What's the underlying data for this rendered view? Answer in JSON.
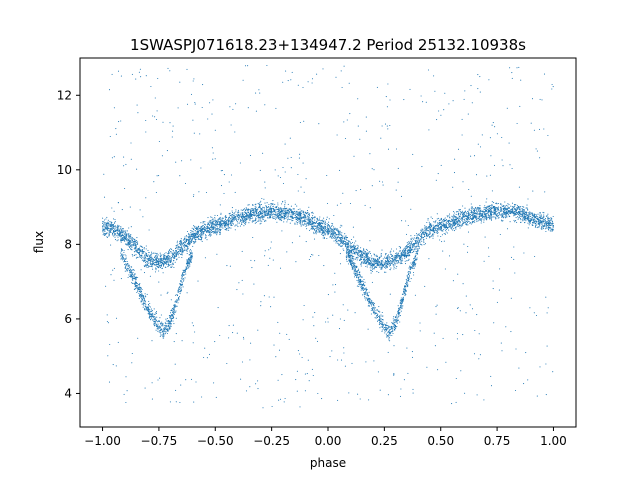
{
  "chart_data": {
    "type": "scatter",
    "title": "1SWASPJ071618.23+134947.2 Period 25132.10938s",
    "xlabel": "phase",
    "ylabel": "flux",
    "xlim": [
      -1.1,
      1.1
    ],
    "ylim": [
      3.1,
      13.0
    ],
    "xticks": [
      -1.0,
      -0.75,
      -0.5,
      -0.25,
      0.0,
      0.25,
      0.5,
      0.75,
      1.0
    ],
    "xtick_labels": [
      "−1.00",
      "−0.75",
      "−0.50",
      "−0.25",
      "0.00",
      "0.25",
      "0.50",
      "0.75",
      "1.00"
    ],
    "yticks": [
      4,
      6,
      8,
      10,
      12
    ],
    "ytick_labels": [
      "4",
      "6",
      "8",
      "10",
      "12"
    ],
    "grid": false,
    "marker_color": "#1f77b4",
    "series": [
      {
        "description_curve": "upper branch",
        "phase": [
          -1.0,
          -0.95,
          -0.9,
          -0.85,
          -0.8,
          -0.75,
          -0.7,
          -0.65,
          -0.6,
          -0.55,
          -0.5,
          -0.45,
          -0.4,
          -0.35,
          -0.3,
          -0.25,
          -0.2,
          -0.15,
          -0.1,
          -0.05,
          0.0,
          0.05,
          0.1,
          0.15,
          0.2,
          0.25,
          0.3,
          0.35,
          0.4,
          0.45,
          0.5,
          0.55,
          0.6,
          0.65,
          0.7,
          0.75,
          0.8,
          0.85,
          0.9,
          0.95,
          1.0
        ],
        "flux": [
          8.5,
          8.4,
          8.2,
          7.9,
          7.6,
          7.5,
          7.6,
          7.9,
          8.2,
          8.4,
          8.5,
          8.6,
          8.7,
          8.8,
          8.85,
          8.9,
          8.85,
          8.8,
          8.7,
          8.5,
          8.4,
          8.2,
          7.9,
          7.7,
          7.5,
          7.5,
          7.6,
          7.8,
          8.1,
          8.4,
          8.5,
          8.6,
          8.7,
          8.8,
          8.85,
          8.9,
          8.9,
          8.85,
          8.7,
          8.6,
          8.5
        ]
      },
      {
        "description_curve": "eclipse branch",
        "phase": [
          -0.92,
          -0.88,
          -0.84,
          -0.8,
          -0.76,
          -0.73,
          -0.7,
          -0.67,
          -0.64,
          -0.6,
          0.08,
          0.12,
          0.16,
          0.2,
          0.24,
          0.27,
          0.3,
          0.33,
          0.36,
          0.4
        ],
        "flux": [
          7.8,
          7.3,
          6.8,
          6.3,
          5.9,
          5.7,
          5.9,
          6.5,
          7.2,
          7.8,
          7.8,
          7.3,
          6.8,
          6.3,
          5.9,
          5.6,
          5.9,
          6.5,
          7.2,
          7.8
        ]
      }
    ]
  }
}
